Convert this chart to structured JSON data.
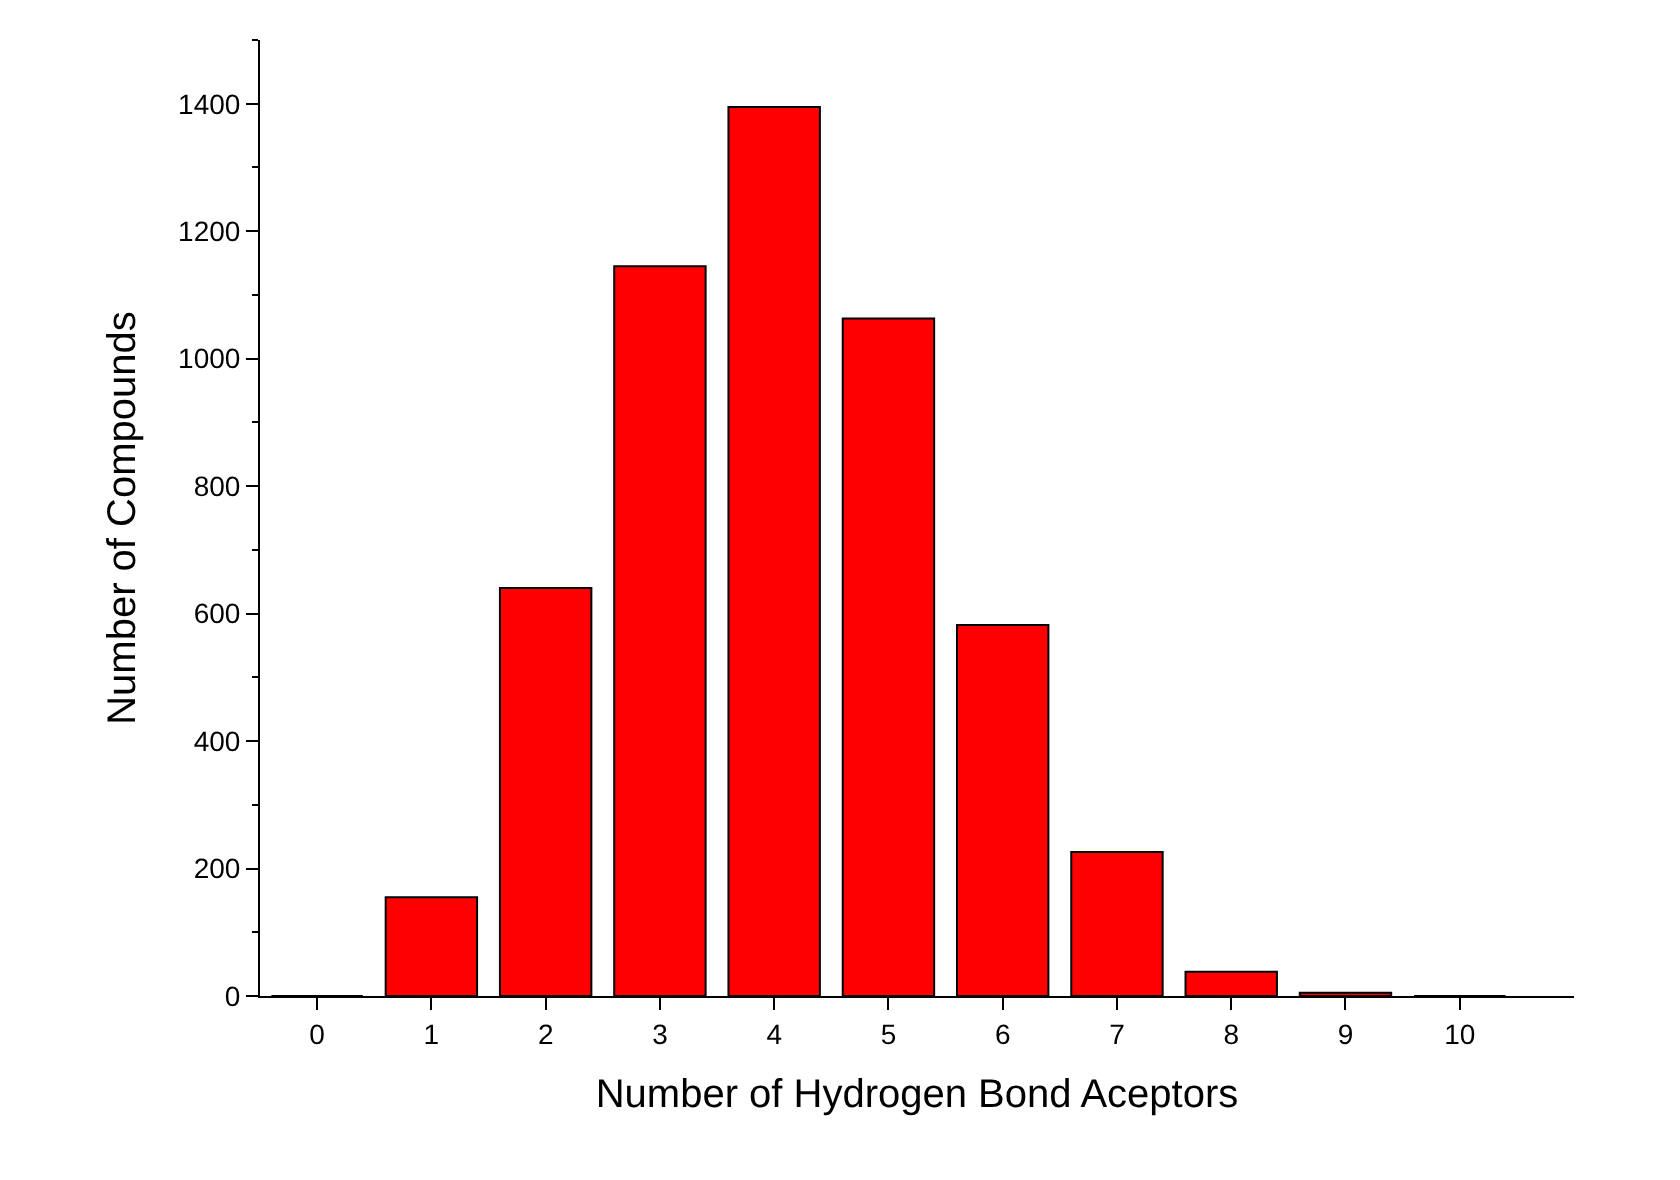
{
  "chart_data": {
    "type": "bar",
    "xlabel": "Number of Hydrogen Bond Aceptors",
    "ylabel": "Number of Compounds",
    "x": [
      0,
      1,
      2,
      3,
      4,
      5,
      6,
      7,
      8,
      9,
      10
    ],
    "values": [
      0,
      155,
      640,
      1145,
      1395,
      1063,
      582,
      226,
      38,
      5,
      0
    ],
    "color": "#ff0000",
    "xlim": [
      -0.5,
      11
    ],
    "xticks": [
      0,
      1,
      2,
      3,
      4,
      5,
      6,
      7,
      8,
      9,
      10
    ],
    "ylim": [
      0,
      1500
    ],
    "yticks": [
      0,
      200,
      400,
      600,
      800,
      1000,
      1200,
      1400
    ]
  }
}
